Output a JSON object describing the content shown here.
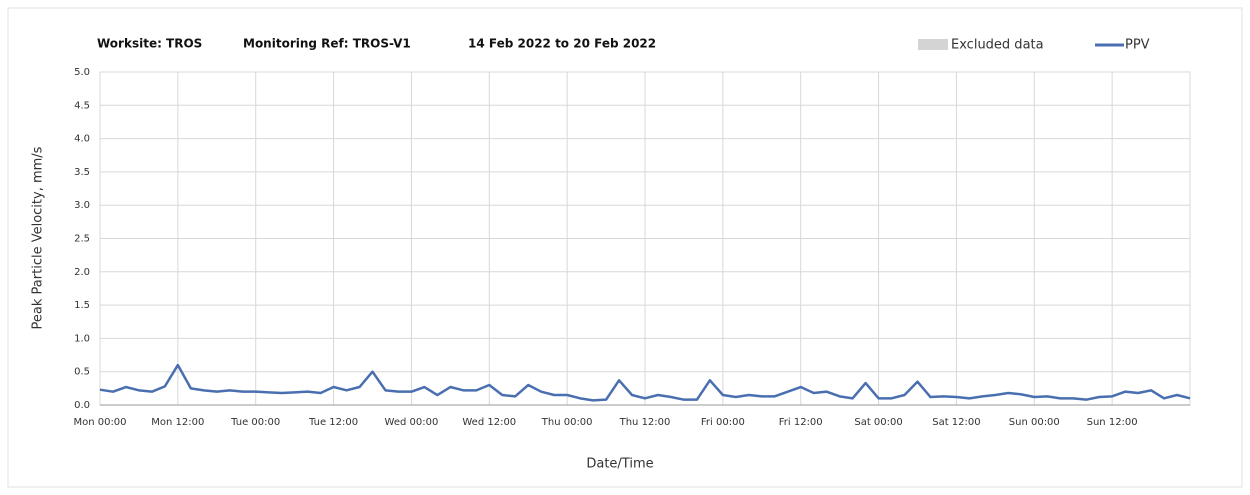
{
  "chart_data": {
    "type": "line",
    "title_parts": [
      "Worksite: TROS",
      "Monitoring Ref: TROS-V1",
      "14 Feb 2022 to 20 Feb 2022"
    ],
    "x_label": "Date/Time",
    "y_label": "Peak Particle Velocity, mm/s",
    "excluded": {
      "name": "Excluded data",
      "color": "#d4d4d4"
    },
    "x": [
      0,
      2,
      4,
      6,
      8,
      10,
      12,
      14,
      16,
      18,
      20,
      22,
      24,
      26,
      28,
      30,
      32,
      34,
      36,
      38,
      40,
      42,
      44,
      46,
      48,
      50,
      52,
      54,
      56,
      58,
      60,
      62,
      64,
      66,
      68,
      70,
      72,
      74,
      76,
      78,
      80,
      82,
      84,
      86,
      88,
      90,
      92,
      94,
      96,
      98,
      100,
      102,
      104,
      106,
      108,
      110,
      112,
      114,
      116,
      118,
      120,
      122,
      124,
      126,
      128,
      130,
      132,
      134,
      136,
      138,
      140,
      142,
      144,
      146,
      148,
      150,
      152,
      154,
      156,
      158,
      160,
      162,
      164,
      166,
      168
    ],
    "series": [
      {
        "name": "PPV",
        "color": "#4a6fb0",
        "values": [
          0.23,
          0.2,
          0.27,
          0.22,
          0.2,
          0.28,
          0.6,
          0.25,
          0.22,
          0.2,
          0.22,
          0.2,
          0.2,
          0.19,
          0.18,
          0.19,
          0.2,
          0.18,
          0.27,
          0.22,
          0.27,
          0.5,
          0.22,
          0.2,
          0.2,
          0.27,
          0.15,
          0.27,
          0.22,
          0.22,
          0.3,
          0.15,
          0.13,
          0.3,
          0.2,
          0.15,
          0.15,
          0.1,
          0.07,
          0.08,
          0.37,
          0.15,
          0.1,
          0.15,
          0.12,
          0.08,
          0.08,
          0.37,
          0.15,
          0.12,
          0.15,
          0.13,
          0.13,
          0.2,
          0.27,
          0.18,
          0.2,
          0.13,
          0.1,
          0.33,
          0.1,
          0.1,
          0.15,
          0.35,
          0.12,
          0.13,
          0.12,
          0.1,
          0.13,
          0.15,
          0.18,
          0.16,
          0.12,
          0.13,
          0.1,
          0.1,
          0.08,
          0.12,
          0.13,
          0.2,
          0.18,
          0.22,
          0.1,
          0.15,
          0.1
        ]
      }
    ],
    "xlim": [
      0,
      168
    ],
    "xticks": [
      {
        "value": 0,
        "label": "Mon 00:00"
      },
      {
        "value": 12,
        "label": "Mon 12:00"
      },
      {
        "value": 24,
        "label": "Tue 00:00"
      },
      {
        "value": 36,
        "label": "Tue 12:00"
      },
      {
        "value": 48,
        "label": "Wed 00:00"
      },
      {
        "value": 60,
        "label": "Wed 12:00"
      },
      {
        "value": 72,
        "label": "Thu 00:00"
      },
      {
        "value": 84,
        "label": "Thu 12:00"
      },
      {
        "value": 96,
        "label": "Fri 00:00"
      },
      {
        "value": 108,
        "label": "Fri 12:00"
      },
      {
        "value": 120,
        "label": "Sat 00:00"
      },
      {
        "value": 132,
        "label": "Sat 12:00"
      },
      {
        "value": 144,
        "label": "Sun 00:00"
      },
      {
        "value": 156,
        "label": "Sun 12:00"
      }
    ],
    "ylim": [
      0,
      5
    ],
    "yticks": [
      {
        "value": 0,
        "label": "0.0"
      },
      {
        "value": 0.5,
        "label": "0.5"
      },
      {
        "value": 1,
        "label": "1.0"
      },
      {
        "value": 1.5,
        "label": "1.5"
      },
      {
        "value": 2,
        "label": "2.0"
      },
      {
        "value": 2.5,
        "label": "2.5"
      },
      {
        "value": 3,
        "label": "3.0"
      },
      {
        "value": 3.5,
        "label": "3.5"
      },
      {
        "value": 4,
        "label": "4.0"
      },
      {
        "value": 4.5,
        "label": "4.5"
      },
      {
        "value": 5,
        "label": "5.0"
      }
    ],
    "grid": true
  }
}
